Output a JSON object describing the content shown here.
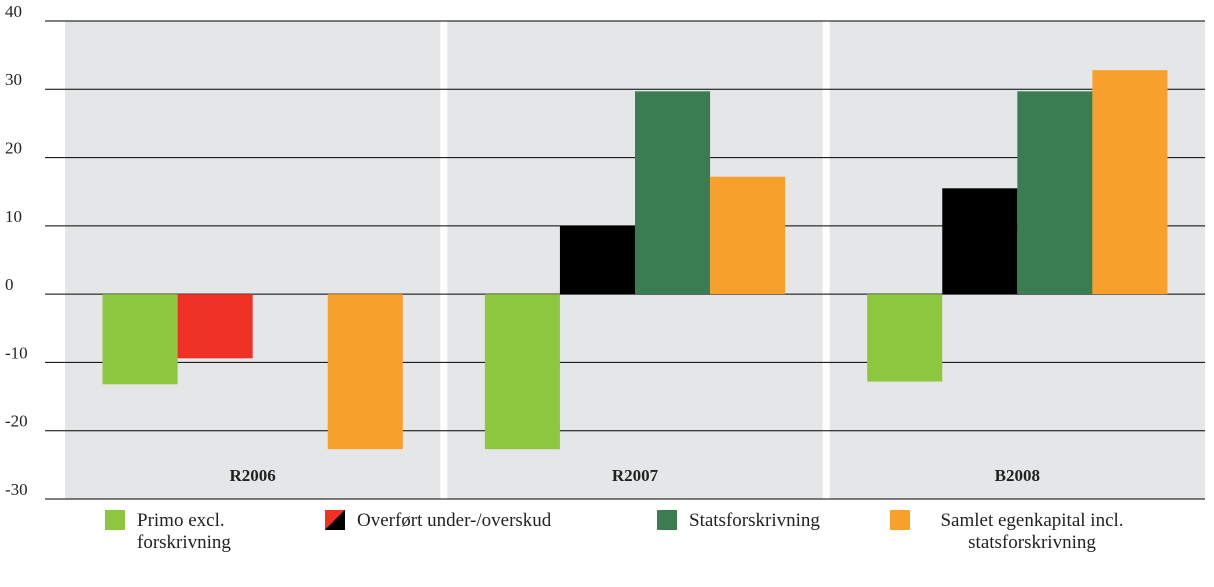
{
  "chart_data": {
    "type": "bar",
    "categories": [
      "R2006",
      "R2007",
      "B2008"
    ],
    "series": [
      {
        "name": "Primo excl. forskrivning",
        "color": "#8dc63f",
        "values": [
          -13.2,
          -22.7,
          -12.8
        ]
      },
      {
        "name": "Overført under-/overskud",
        "color": "#000000",
        "negative_color": "#ee3124",
        "values": [
          -9.4,
          10,
          15.5
        ]
      },
      {
        "name": "Statsforskrivning",
        "color": "#3a7d52",
        "values": [
          null,
          29.7,
          29.7
        ]
      },
      {
        "name": "Samlet egenkapital incl. statsforskrivning",
        "color": "#f7a12c",
        "values": [
          -22.7,
          17.2,
          32.8
        ]
      }
    ],
    "ylim": [
      -30,
      40
    ],
    "yticks": [
      -30,
      -20,
      -10,
      0,
      10,
      20,
      30,
      40
    ],
    "grid": true,
    "panel_color": "#e5e6e7"
  }
}
